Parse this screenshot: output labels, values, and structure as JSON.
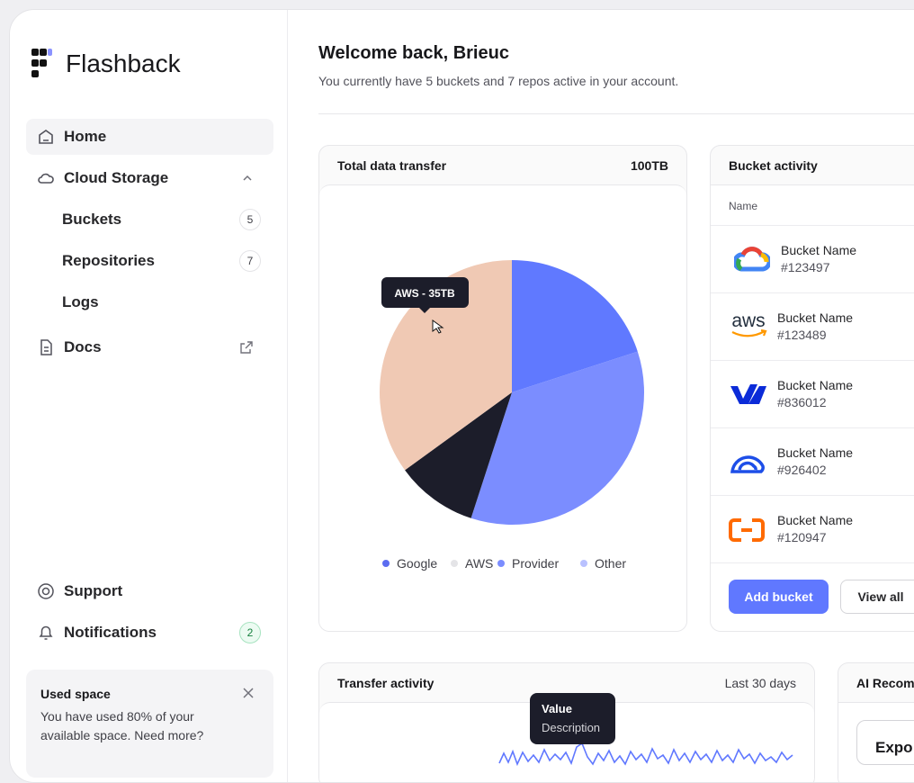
{
  "sidebar": {
    "brand": "Flashback",
    "nav": [
      {
        "label": "Home"
      },
      {
        "label": "Cloud Storage"
      },
      {
        "label": "Buckets",
        "badge": 5
      },
      {
        "label": "Repositories",
        "badge": 7
      },
      {
        "label": "Logs"
      },
      {
        "label": "Docs"
      }
    ],
    "footer_nav": [
      {
        "label": "Support"
      },
      {
        "label": "Notifications",
        "badge": 2
      }
    ],
    "used_space": {
      "title": "Used space",
      "text": "You have used 80% of your available space. Need more?"
    }
  },
  "header": {
    "title": "Welcome back, Brieuc",
    "subtitle": "You currently have 5 buckets and 7 repos active in your account."
  },
  "transfer_card": {
    "title": "Total data transfer",
    "total": "100TB",
    "tooltip": "AWS - 35TB"
  },
  "chart_data": {
    "type": "pie",
    "categories": [
      "Google",
      "AWS",
      "Provider",
      "Other"
    ],
    "values": [
      20,
      35,
      35,
      10
    ],
    "colors": [
      "#6079ff",
      "#f0c9b4",
      "#7b8dff",
      "#1c1d2a"
    ],
    "legend_colors": [
      "#5b6cf0",
      "#e4e4e7",
      "#7b8dff",
      "#b9c1ff"
    ]
  },
  "bucket_card": {
    "title": "Bucket activity",
    "column": "Name",
    "buckets": [
      {
        "name": "Bucket Name",
        "id": "#123497"
      },
      {
        "name": "Bucket Name",
        "id": "#123489",
        "logo_text": "aws"
      },
      {
        "name": "Bucket Name",
        "id": "#836012"
      },
      {
        "name": "Bucket Name",
        "id": "#926402"
      },
      {
        "name": "Bucket Name",
        "id": "#120947"
      }
    ],
    "buttons": [
      "Add bucket",
      "View all"
    ]
  },
  "activity_card": {
    "title": "Transfer activity",
    "range": "Last 30 days",
    "tooltip": {
      "title": "Value",
      "description": "Description"
    }
  },
  "ai_card": {
    "title": "AI Recom",
    "button": "Expo"
  }
}
